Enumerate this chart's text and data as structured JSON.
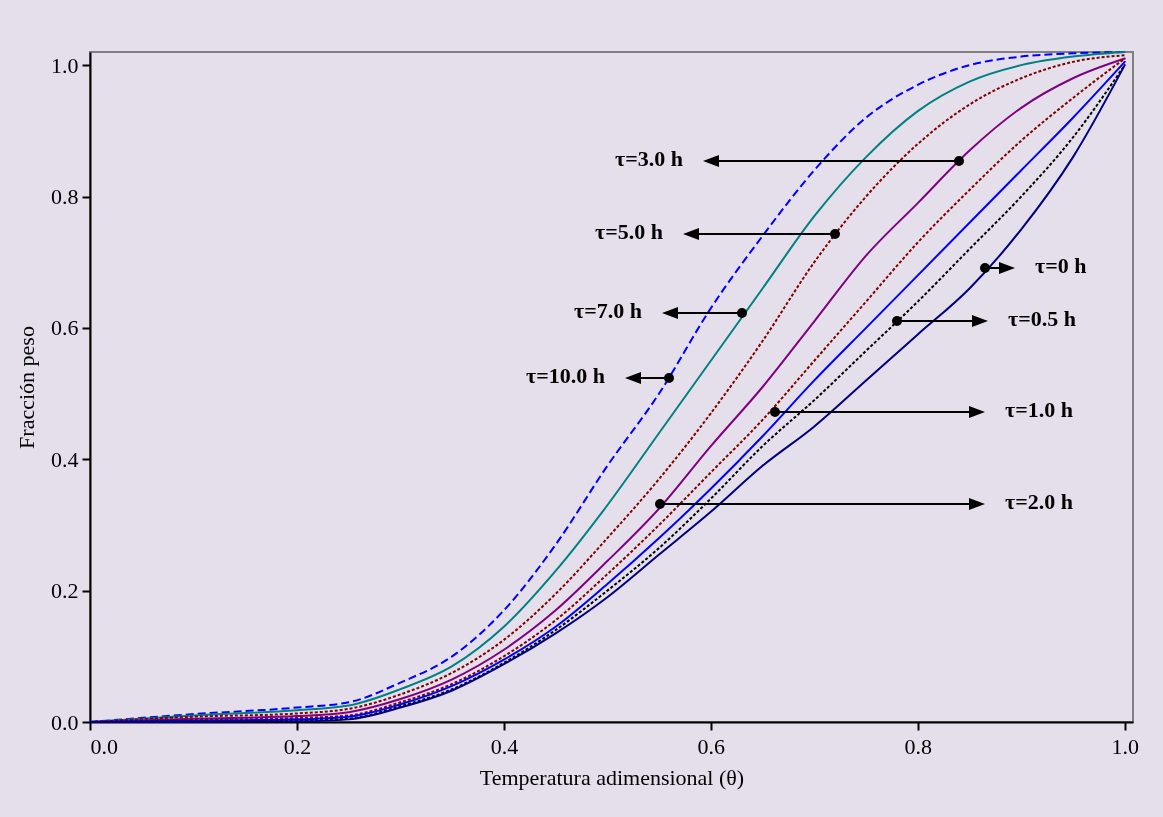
{
  "chart_data": {
    "type": "line",
    "xlabel": "Temperatura adimensional (θ)",
    "ylabel": "Fracción peso",
    "xlim": [
      0,
      1.008
    ],
    "ylim": [
      0,
      1.02
    ],
    "xticks": [
      {
        "value": 0,
        "label": "0.0"
      },
      0.2,
      0.4,
      0.6,
      0.8,
      {
        "value": 1,
        "label": "1.0"
      }
    ],
    "yticks": [
      {
        "value": 0,
        "label": "0.0"
      },
      0.2,
      0.4,
      0.6,
      0.8,
      {
        "value": 1,
        "label": "1.0"
      }
    ],
    "grid": false,
    "legend": false,
    "marker": "none",
    "x": [
      0,
      0.1,
      0.2,
      0.25,
      0.3,
      0.35,
      0.4,
      0.45,
      0.5,
      0.55,
      0.6,
      0.65,
      0.7,
      0.75,
      0.8,
      0.85,
      0.9,
      0.95,
      1.0
    ],
    "series": [
      {
        "color": "#0000ff",
        "line_style": "dashed",
        "values": [
          0,
          0.012,
          0.022,
          0.03,
          0.06,
          0.1,
          0.17,
          0.27,
          0.39,
          0.5,
          0.63,
          0.74,
          0.84,
          0.92,
          0.97,
          1.0,
          1.013,
          1.018,
          1.02
        ]
      },
      {
        "color": "#008080",
        "line_style": "solid",
        "values": [
          0,
          0.01,
          0.018,
          0.025,
          0.05,
          0.085,
          0.145,
          0.23,
          0.33,
          0.44,
          0.55,
          0.66,
          0.77,
          0.86,
          0.93,
          0.975,
          1.0,
          1.013,
          1.02
        ]
      },
      {
        "color": "#800000",
        "line_style": "dotted",
        "values": [
          0,
          0.008,
          0.013,
          0.02,
          0.042,
          0.075,
          0.125,
          0.195,
          0.28,
          0.37,
          0.47,
          0.58,
          0.7,
          0.8,
          0.88,
          0.94,
          0.98,
          1.005,
          1.015
        ]
      },
      {
        "color": "#800080",
        "line_style": "solid",
        "values": [
          0,
          0.005,
          0.009,
          0.015,
          0.035,
          0.065,
          0.11,
          0.17,
          0.245,
          0.325,
          0.42,
          0.51,
          0.61,
          0.71,
          0.79,
          0.87,
          0.935,
          0.98,
          1.01
        ]
      },
      {
        "color": "#800000",
        "line_style": "dotted",
        "values": [
          0,
          0.003,
          0.006,
          0.01,
          0.03,
          0.058,
          0.1,
          0.155,
          0.225,
          0.3,
          0.38,
          0.46,
          0.55,
          0.64,
          0.73,
          0.81,
          0.885,
          0.95,
          1.01
        ]
      },
      {
        "color": "#0000ff",
        "line_style": "solid",
        "values": [
          0,
          0.002,
          0.004,
          0.008,
          0.027,
          0.055,
          0.095,
          0.145,
          0.21,
          0.28,
          0.355,
          0.435,
          0.52,
          0.6,
          0.68,
          0.76,
          0.84,
          0.92,
          1.005
        ]
      },
      {
        "color": "#000000",
        "line_style": "dotted",
        "values": [
          0,
          0.001,
          0.002,
          0.005,
          0.024,
          0.05,
          0.09,
          0.14,
          0.2,
          0.265,
          0.34,
          0.42,
          0.49,
          0.565,
          0.64,
          0.72,
          0.8,
          0.89,
          1.0
        ]
      },
      {
        "color": "#000080",
        "line_style": "solid",
        "values": [
          0,
          0,
          0.001,
          0.004,
          0.022,
          0.048,
          0.088,
          0.135,
          0.19,
          0.255,
          0.32,
          0.39,
          0.45,
          0.52,
          0.59,
          0.66,
          0.75,
          0.86,
          1.0
        ]
      }
    ],
    "annotations": [
      "τ=0 h",
      "τ=0.5 h",
      "τ=1.0 h",
      "τ=2.0 h",
      "τ=3.0 h",
      "τ=5.0 h",
      "τ=7.0 h",
      "τ=10.0 h"
    ]
  }
}
